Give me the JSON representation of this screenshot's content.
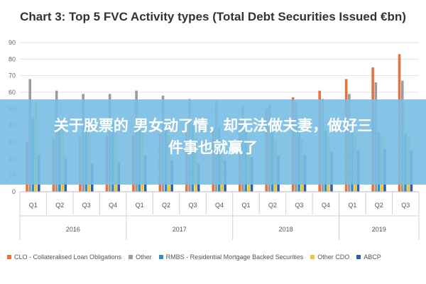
{
  "chart_data": {
    "type": "bar",
    "title": "Chart 3: Top 5 FVC Activity types (Total Debt Securities Issued €bn)",
    "ylim": [
      0,
      90
    ],
    "yticks": [
      0,
      10,
      20,
      30,
      40,
      50,
      60,
      70,
      80,
      90
    ],
    "grid": "horizontal",
    "legend_position": "bottom",
    "categories": [
      "Q1",
      "Q2",
      "Q3",
      "Q4",
      "Q1",
      "Q2",
      "Q3",
      "Q4",
      "Q1",
      "Q2",
      "Q3",
      "Q4",
      "Q1",
      "Q2",
      "Q3"
    ],
    "groups": [
      {
        "label": "2016",
        "count": 4
      },
      {
        "label": "2017",
        "count": 4
      },
      {
        "label": "2018",
        "count": 4
      },
      {
        "label": "2019",
        "count": 3
      }
    ],
    "series": [
      {
        "name": "CLO - Collateralised Loan Obligations",
        "color": "#e8713c",
        "values": [
          30,
          32,
          33,
          34,
          34,
          35,
          36,
          38,
          43,
          50,
          57,
          61,
          68,
          75,
          83
        ]
      },
      {
        "name": "Other",
        "color": "#9c9c9c",
        "values": [
          68,
          61,
          59,
          59,
          61,
          58,
          56,
          55,
          52,
          53,
          54,
          56,
          59,
          66,
          67
        ]
      },
      {
        "name": "RMBS - Residential Mortgage Backed Securities",
        "color": "#2f8fc2",
        "values": [
          45,
          44,
          43,
          42,
          42,
          41,
          40,
          39,
          38,
          38,
          37,
          37,
          36,
          36,
          35
        ]
      },
      {
        "name": "Other CDO",
        "color": "#f4c234",
        "values": [
          54,
          38,
          37,
          35,
          36,
          34,
          33,
          32,
          33,
          32,
          32,
          33,
          34,
          34,
          33
        ]
      },
      {
        "name": "ABCP",
        "color": "#2e5fa8",
        "values": [
          22,
          20,
          17,
          18,
          22,
          19,
          17,
          19,
          21,
          22,
          22,
          24,
          25,
          26,
          25
        ]
      }
    ]
  },
  "overlay": {
    "line1": "关于股票的 男女动了情，却无法做夫妻，做好三",
    "line2": "件事也就赢了"
  }
}
